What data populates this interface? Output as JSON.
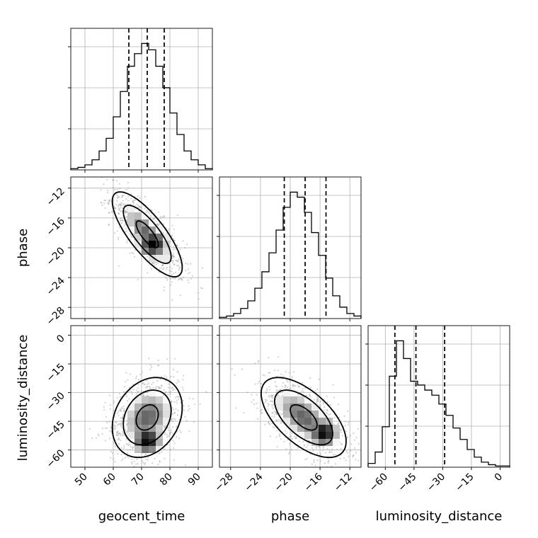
{
  "chart_data": {
    "type": "corner",
    "parameters": [
      "geocent_time",
      "phase",
      "luminosity_distance"
    ],
    "grid": true,
    "axes": {
      "geocent_time": {
        "range": [
          45,
          95
        ],
        "ticks": [
          50,
          60,
          70,
          80,
          90
        ],
        "tick_labels": [
          "50",
          "60",
          "70",
          "80",
          "90"
        ]
      },
      "phase": {
        "range": [
          -29.5,
          -10.5
        ],
        "ticks": [
          -28,
          -24,
          -20,
          -16,
          -12
        ],
        "tick_labels": [
          "−28",
          "−24",
          "−20",
          "−16",
          "−12"
        ]
      },
      "luminosity_distance": {
        "range": [
          -69,
          5
        ],
        "ticks": [
          -60,
          -45,
          -30,
          -15,
          0
        ],
        "tick_labels": [
          "−60",
          "−45",
          "−30",
          "−15",
          "0"
        ]
      }
    },
    "histograms": {
      "geocent_time": {
        "bin_edges": [
          45,
          47.5,
          50,
          52.5,
          55,
          57.5,
          60,
          62.5,
          65,
          67.5,
          70,
          72.5,
          75,
          77.5,
          80,
          82.5,
          85,
          87.5,
          90,
          92.5,
          95
        ],
        "counts": [
          1,
          2,
          4,
          8,
          15,
          25,
          42,
          62,
          82,
          92,
          100,
          95,
          82,
          65,
          45,
          28,
          15,
          8,
          4,
          1
        ],
        "quantiles": [
          65.5,
          72,
          78
        ]
      },
      "phase": {
        "bin_edges": [
          -29.5,
          -28.55,
          -27.6,
          -26.65,
          -25.7,
          -24.75,
          -23.8,
          -22.85,
          -21.9,
          -20.95,
          -20.0,
          -19.05,
          -18.1,
          -17.15,
          -16.2,
          -15.25,
          -14.3,
          -13.35,
          -12.4,
          -11.45,
          -10.5
        ],
        "counts": [
          1,
          2,
          4,
          8,
          14,
          24,
          37,
          52,
          70,
          88,
          100,
          96,
          84,
          68,
          50,
          32,
          18,
          9,
          4,
          2
        ],
        "quantiles": [
          -20.8,
          -18.0,
          -15.2
        ]
      },
      "luminosity_distance": {
        "bin_edges": [
          -69,
          -65.3,
          -61.6,
          -57.9,
          -54.2,
          -50.5,
          -46.8,
          -43.1,
          -39.4,
          -35.7,
          -32.0,
          -28.3,
          -24.6,
          -20.9,
          -17.2,
          -13.5,
          -9.8,
          -6.1,
          -2.4,
          1.3,
          5.0
        ],
        "counts": [
          3,
          12,
          32,
          72,
          100,
          86,
          68,
          65,
          61,
          57,
          50,
          41,
          31,
          22,
          14,
          8,
          4,
          2,
          1,
          1
        ],
        "quantiles": [
          -55,
          -44,
          -29
        ]
      }
    },
    "pairs": [
      {
        "x": "geocent_time",
        "y": "phase",
        "correlation": -0.78,
        "mode": [
          73,
          -18.5
        ],
        "density_peak": [
          74,
          -19.5
        ]
      },
      {
        "x": "geocent_time",
        "y": "luminosity_distance",
        "correlation": 0.25,
        "mode": [
          70,
          -54
        ],
        "density_peak": [
          72,
          -55
        ]
      },
      {
        "x": "phase",
        "y": "luminosity_distance",
        "correlation": -0.6,
        "mode": [
          -16,
          -50
        ],
        "density_peak": [
          -15.5,
          -51
        ]
      }
    ],
    "contour_levels": [
      0.39,
      0.86,
      0.99
    ],
    "xlabel": [
      "geocent_time",
      "phase",
      "luminosity_distance"
    ],
    "ylabel": [
      "",
      "phase",
      "luminosity_distance"
    ]
  }
}
